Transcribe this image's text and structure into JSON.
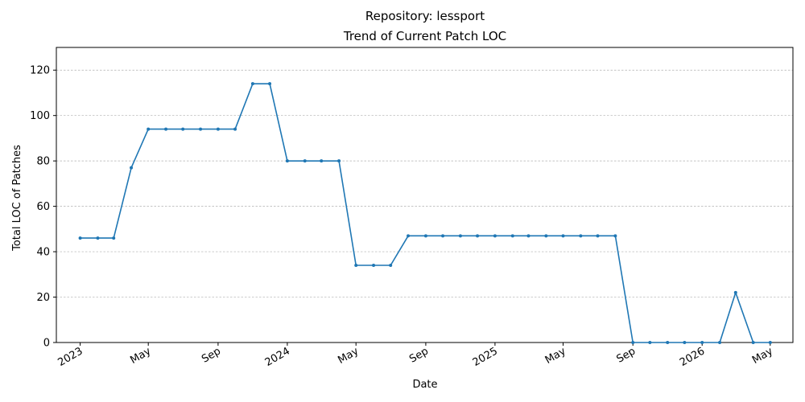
{
  "chart_data": {
    "type": "line",
    "title": "Repository: lessport",
    "subtitle": "Trend of Current Patch LOC",
    "xlabel": "Date",
    "ylabel": "Total LOC of Patches",
    "ylim": [
      0,
      130
    ],
    "yticks": [
      0,
      20,
      40,
      60,
      80,
      100,
      120
    ],
    "xlim": [
      "2022-11-20",
      "2026-06-10"
    ],
    "xticks": [
      {
        "date": "2023-01-01",
        "label": "2023"
      },
      {
        "date": "2023-05-01",
        "label": "May"
      },
      {
        "date": "2023-09-01",
        "label": "Sep"
      },
      {
        "date": "2024-01-01",
        "label": "2024"
      },
      {
        "date": "2024-05-01",
        "label": "May"
      },
      {
        "date": "2024-09-01",
        "label": "Sep"
      },
      {
        "date": "2025-01-01",
        "label": "2025"
      },
      {
        "date": "2025-05-01",
        "label": "May"
      },
      {
        "date": "2025-09-01",
        "label": "Sep"
      },
      {
        "date": "2026-01-01",
        "label": "2026"
      },
      {
        "date": "2026-05-01",
        "label": "May"
      }
    ],
    "grid": "y-dashed",
    "color": "#1f77b4",
    "series": [
      {
        "x": [
          "2023-01-01",
          "2023-02-01",
          "2023-03-01",
          "2023-04-01",
          "2023-05-01",
          "2023-06-01",
          "2023-07-01",
          "2023-08-01",
          "2023-09-01",
          "2023-10-01",
          "2023-11-01",
          "2023-12-01",
          "2024-01-01",
          "2024-02-01",
          "2024-03-01",
          "2024-04-01",
          "2024-05-01",
          "2024-06-01",
          "2024-07-01",
          "2024-08-01",
          "2024-09-01",
          "2024-10-01",
          "2024-11-01",
          "2024-12-01",
          "2025-01-01",
          "2025-02-01",
          "2025-03-01",
          "2025-04-01",
          "2025-05-01",
          "2025-06-01",
          "2025-07-01",
          "2025-08-01",
          "2025-09-01",
          "2025-10-01",
          "2025-11-01",
          "2025-12-01",
          "2026-01-01",
          "2026-02-01",
          "2026-03-01",
          "2026-04-01",
          "2026-05-01"
        ],
        "values": [
          46,
          46,
          46,
          77,
          94,
          94,
          94,
          94,
          94,
          94,
          114,
          114,
          80,
          80,
          80,
          80,
          34,
          34,
          34,
          47,
          47,
          47,
          47,
          47,
          47,
          47,
          47,
          47,
          47,
          47,
          47,
          47,
          0,
          0,
          0,
          0,
          0,
          0,
          22,
          0,
          0
        ]
      }
    ]
  }
}
